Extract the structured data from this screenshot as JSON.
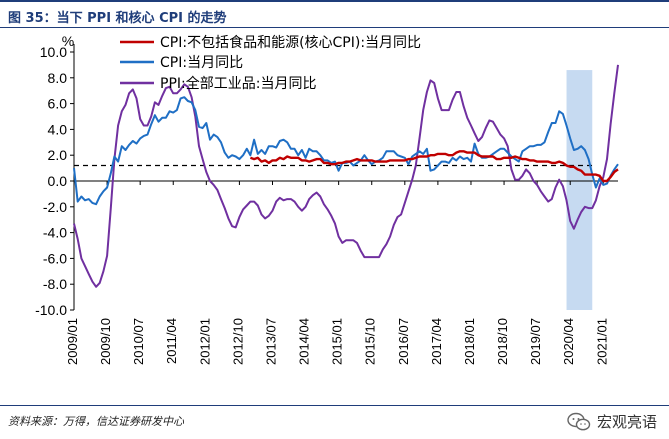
{
  "figure": {
    "title": "图 35：当下 PPI 和核心 CPI 的走势",
    "source": "资料来源：万得，信达证券研发中心",
    "watermark": "宏观亮语"
  },
  "chart_data": {
    "type": "line",
    "unit_label": "%",
    "ylim": [
      -10,
      10
    ],
    "yticks": [
      "10.0",
      "8.0",
      "6.0",
      "4.0",
      "2.0",
      "0.0",
      "-2.0",
      "-4.0",
      "-6.0",
      "-8.0",
      "-10.0"
    ],
    "xticks": [
      "2009/01",
      "2009/10",
      "2010/07",
      "2011/04",
      "2012/01",
      "2012/10",
      "2013/07",
      "2014/04",
      "2015/01",
      "2015/10",
      "2016/07",
      "2017/04",
      "2018/01",
      "2018/10",
      "2019/07",
      "2020/04",
      "2021/01"
    ],
    "x_start": "2009/01",
    "x_end": "2021/05",
    "reference_line": {
      "value": 1.2,
      "style": "dashed"
    },
    "highlight_region": {
      "from": "2020/03",
      "to": "2020/10"
    },
    "series": [
      {
        "name": "CPI:不包括食品和能源(核心CPI):当月同比",
        "color": "#c00000",
        "start": "2013/01",
        "values": [
          1.8,
          1.7,
          1.8,
          1.5,
          1.6,
          1.4,
          1.6,
          1.6,
          1.8,
          1.7,
          1.9,
          1.8,
          1.8,
          1.8,
          1.6,
          1.6,
          1.5,
          1.6,
          1.7,
          1.7,
          1.4,
          1.4,
          1.3,
          1.3,
          1.4,
          1.4,
          1.5,
          1.5,
          1.6,
          1.7,
          1.6,
          1.6,
          1.6,
          1.6,
          1.5,
          1.5,
          1.5,
          1.5,
          1.6,
          1.6,
          1.6,
          1.6,
          1.6,
          1.7,
          1.7,
          1.8,
          1.9,
          1.9,
          1.9,
          2.0,
          2.0,
          2.1,
          2.1,
          2.1,
          2.0,
          2.0,
          2.2,
          2.3,
          2.3,
          2.2,
          2.2,
          2.2,
          2.0,
          1.9,
          1.9,
          1.9,
          1.9,
          1.7,
          1.7,
          1.8,
          1.8,
          1.8,
          1.9,
          1.8,
          1.7,
          1.7,
          1.6,
          1.6,
          1.5,
          1.5,
          1.5,
          1.5,
          1.4,
          1.4,
          1.5,
          1.4,
          1.2,
          1.1,
          1.1,
          0.9,
          0.8,
          0.5,
          0.5,
          0.5,
          0.5,
          0.4,
          0.0,
          0.0,
          0.3,
          0.7,
          0.9
        ]
      },
      {
        "name": "CPI:当月同比",
        "color": "#1f6fc5",
        "start": "2009/01",
        "values": [
          1.0,
          -1.6,
          -1.2,
          -1.5,
          -1.4,
          -1.7,
          -1.8,
          -1.2,
          -0.8,
          -0.5,
          0.6,
          1.9,
          1.5,
          2.7,
          2.4,
          2.8,
          3.1,
          2.9,
          3.3,
          3.5,
          3.6,
          4.4,
          5.1,
          4.6,
          4.9,
          4.9,
          5.4,
          5.3,
          5.5,
          6.4,
          6.5,
          6.2,
          6.1,
          5.5,
          4.2,
          4.1,
          4.5,
          3.2,
          3.6,
          3.4,
          3.0,
          2.2,
          1.8,
          2.0,
          1.9,
          1.7,
          2.0,
          2.5,
          2.0,
          3.2,
          2.1,
          2.4,
          2.1,
          2.7,
          2.7,
          2.6,
          3.1,
          3.2,
          3.0,
          2.5,
          2.5,
          2.0,
          2.4,
          1.8,
          2.5,
          2.3,
          2.3,
          2.0,
          1.6,
          1.6,
          1.4,
          1.5,
          0.8,
          1.4,
          1.4,
          1.5,
          1.2,
          1.4,
          1.6,
          2.0,
          1.6,
          1.3,
          1.5,
          1.6,
          1.8,
          2.3,
          2.3,
          2.3,
          2.0,
          1.9,
          1.8,
          1.3,
          1.9,
          2.1,
          2.3,
          2.1,
          2.5,
          0.8,
          0.9,
          1.2,
          1.5,
          1.5,
          1.4,
          1.8,
          1.6,
          1.9,
          1.7,
          1.8,
          1.5,
          2.9,
          2.1,
          1.8,
          1.8,
          1.9,
          2.1,
          2.3,
          2.5,
          2.5,
          2.2,
          1.9,
          1.7,
          1.5,
          2.3,
          2.5,
          2.7,
          2.7,
          2.8,
          2.8,
          3.0,
          3.8,
          4.5,
          4.5,
          5.4,
          5.2,
          4.3,
          3.3,
          2.4,
          2.5,
          2.7,
          2.4,
          1.7,
          0.5,
          -0.5,
          0.2,
          -0.3,
          -0.2,
          0.4,
          0.9,
          1.3
        ]
      },
      {
        "name": "PPI:全部工业品:当月同比",
        "color": "#7030a0",
        "start": "2009/01",
        "values": [
          -3.3,
          -4.5,
          -6.0,
          -6.6,
          -7.2,
          -7.8,
          -8.2,
          -7.9,
          -7.0,
          -5.8,
          -2.1,
          1.7,
          4.3,
          5.4,
          5.9,
          6.8,
          7.1,
          6.4,
          4.8,
          4.3,
          4.3,
          5.0,
          6.1,
          5.9,
          6.6,
          7.2,
          7.3,
          6.8,
          6.8,
          7.1,
          7.5,
          7.3,
          6.5,
          5.0,
          2.7,
          1.7,
          0.7,
          0.0,
          -0.3,
          -0.7,
          -1.4,
          -2.1,
          -2.9,
          -3.5,
          -3.6,
          -2.8,
          -2.2,
          -1.9,
          -1.6,
          -1.6,
          -1.9,
          -2.6,
          -2.9,
          -2.7,
          -2.3,
          -1.6,
          -1.3,
          -1.5,
          -1.4,
          -1.4,
          -1.6,
          -2.0,
          -2.3,
          -2.0,
          -1.4,
          -1.1,
          -0.9,
          -1.2,
          -1.8,
          -2.2,
          -2.7,
          -3.3,
          -4.3,
          -4.8,
          -4.6,
          -4.6,
          -4.6,
          -4.8,
          -5.4,
          -5.9,
          -5.9,
          -5.9,
          -5.9,
          -5.9,
          -5.3,
          -4.9,
          -4.3,
          -3.4,
          -2.8,
          -2.6,
          -1.7,
          -0.8,
          0.1,
          1.2,
          3.3,
          5.5,
          6.9,
          7.8,
          7.6,
          6.4,
          5.5,
          5.5,
          5.5,
          6.3,
          6.9,
          6.9,
          5.8,
          4.9,
          4.3,
          3.7,
          3.1,
          3.4,
          4.1,
          4.7,
          4.6,
          4.1,
          3.6,
          3.3,
          2.7,
          0.9,
          0.1,
          0.1,
          0.4,
          0.9,
          0.6,
          0.0,
          -0.3,
          -0.8,
          -1.2,
          -1.6,
          -1.4,
          -0.5,
          0.1,
          -0.4,
          -1.5,
          -3.1,
          -3.7,
          -3.0,
          -2.4,
          -2.0,
          -2.1,
          -2.1,
          -1.5,
          -0.4,
          0.3,
          1.7,
          4.4,
          6.8,
          9.0
        ]
      }
    ]
  }
}
